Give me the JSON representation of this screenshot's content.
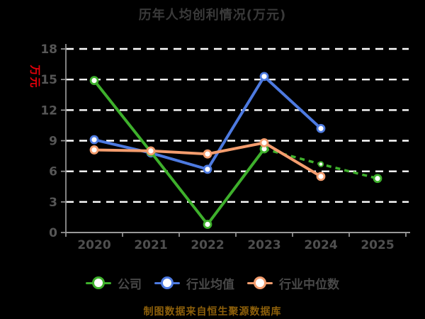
{
  "title": "历年人均创利情况(万元)",
  "y_axis_name": "万元",
  "source_note": "制图数据来自恒生聚源数据库",
  "colors": {
    "background": "#000000",
    "title": "#3a3a3a",
    "y_axis_name": "#e8000a",
    "gridline": "#ffffff",
    "axis": "#999999",
    "tick_label": "#565656",
    "legend_text": "#484848",
    "source_note": "#8c5f0a",
    "company": "#3eb02c",
    "industry_avg": "#4d7ae0",
    "industry_median": "#f49d6e"
  },
  "chart_data": {
    "type": "line",
    "title": "历年人均创利情况(万元)",
    "ylabel": "万元",
    "xlabel": "",
    "categories": [
      "2020",
      "2021",
      "2022",
      "2023",
      "2024",
      "2025"
    ],
    "ylim": [
      0,
      18
    ],
    "yticks": [
      0,
      3,
      6,
      9,
      12,
      15,
      18
    ],
    "grid": "horizontal-dashed-white",
    "legend_position": "bottom",
    "draw_order": [
      1,
      0,
      2
    ],
    "series": [
      {
        "id": "company",
        "name": "公司",
        "color": "#3eb02c",
        "values": [
          14.9,
          7.9,
          0.8,
          8.2,
          6.7,
          5.3
        ],
        "dashed_from_index": 3,
        "small_markers": [
          4
        ]
      },
      {
        "id": "industry-avg",
        "name": "行业均值",
        "color": "#4d7ae0",
        "values": [
          9.1,
          7.8,
          6.2,
          15.3,
          10.2,
          null
        ],
        "dashed_from_index": null,
        "small_markers": []
      },
      {
        "id": "industry-median",
        "name": "行业中位数",
        "color": "#f49d6e",
        "values": [
          8.1,
          8.0,
          7.7,
          8.8,
          5.5,
          null
        ],
        "dashed_from_index": null,
        "small_markers": []
      }
    ]
  }
}
